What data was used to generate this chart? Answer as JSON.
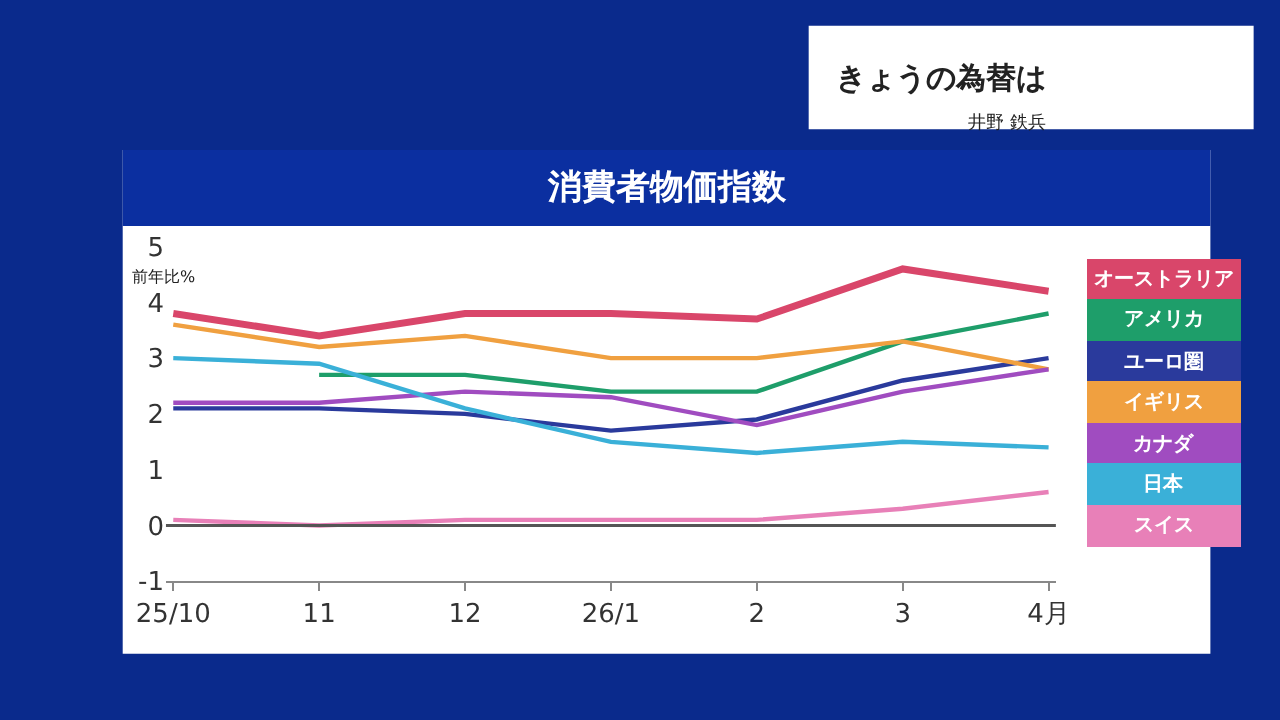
{
  "chart_data": {
    "type": "line",
    "title": "消費者物価指数",
    "ylabel": "前年比%",
    "categories": [
      "25/10",
      "11",
      "12",
      "26/1",
      "2",
      "3",
      "4月"
    ],
    "series": [
      {
        "name": "オーストラリア",
        "color": "#d9466a",
        "values": [
          3.8,
          3.4,
          3.8,
          3.8,
          3.7,
          4.6,
          4.2
        ]
      },
      {
        "name": "アメリカ",
        "color": "#1e9e6a",
        "values": [
          null,
          2.7,
          2.7,
          2.4,
          2.4,
          3.3,
          3.8
        ]
      },
      {
        "name": "ユーロ圏",
        "color": "#2a3a9c",
        "values": [
          2.1,
          2.1,
          2.0,
          1.7,
          1.9,
          2.6,
          3.0
        ]
      },
      {
        "name": "イギリス",
        "color": "#f0a040",
        "values": [
          3.6,
          3.2,
          3.4,
          3.0,
          3.0,
          3.3,
          2.8
        ]
      },
      {
        "name": "カナダ",
        "color": "#a04cc0",
        "values": [
          2.2,
          2.2,
          2.4,
          2.3,
          1.8,
          2.4,
          2.8
        ]
      },
      {
        "name": "日本",
        "color": "#3ab0d8",
        "values": [
          3.0,
          2.9,
          2.1,
          1.5,
          1.3,
          1.5,
          1.4
        ]
      },
      {
        "name": "スイス",
        "color": "#e880b8",
        "values": [
          0.1,
          0.0,
          0.1,
          0.1,
          0.1,
          0.3,
          0.6
        ]
      }
    ],
    "ylim": [
      -1,
      5
    ],
    "yticks": [
      -1,
      0,
      1,
      2,
      3,
      4,
      5
    ],
    "ref_lines": [
      {
        "axis": "y",
        "value": 0,
        "color": "#555555"
      }
    ],
    "grid": false,
    "legend": false,
    "marker": "none",
    "line_style": "solid",
    "annotations": [
      "きょうの為替は",
      "井野 鉄兵"
    ]
  }
}
